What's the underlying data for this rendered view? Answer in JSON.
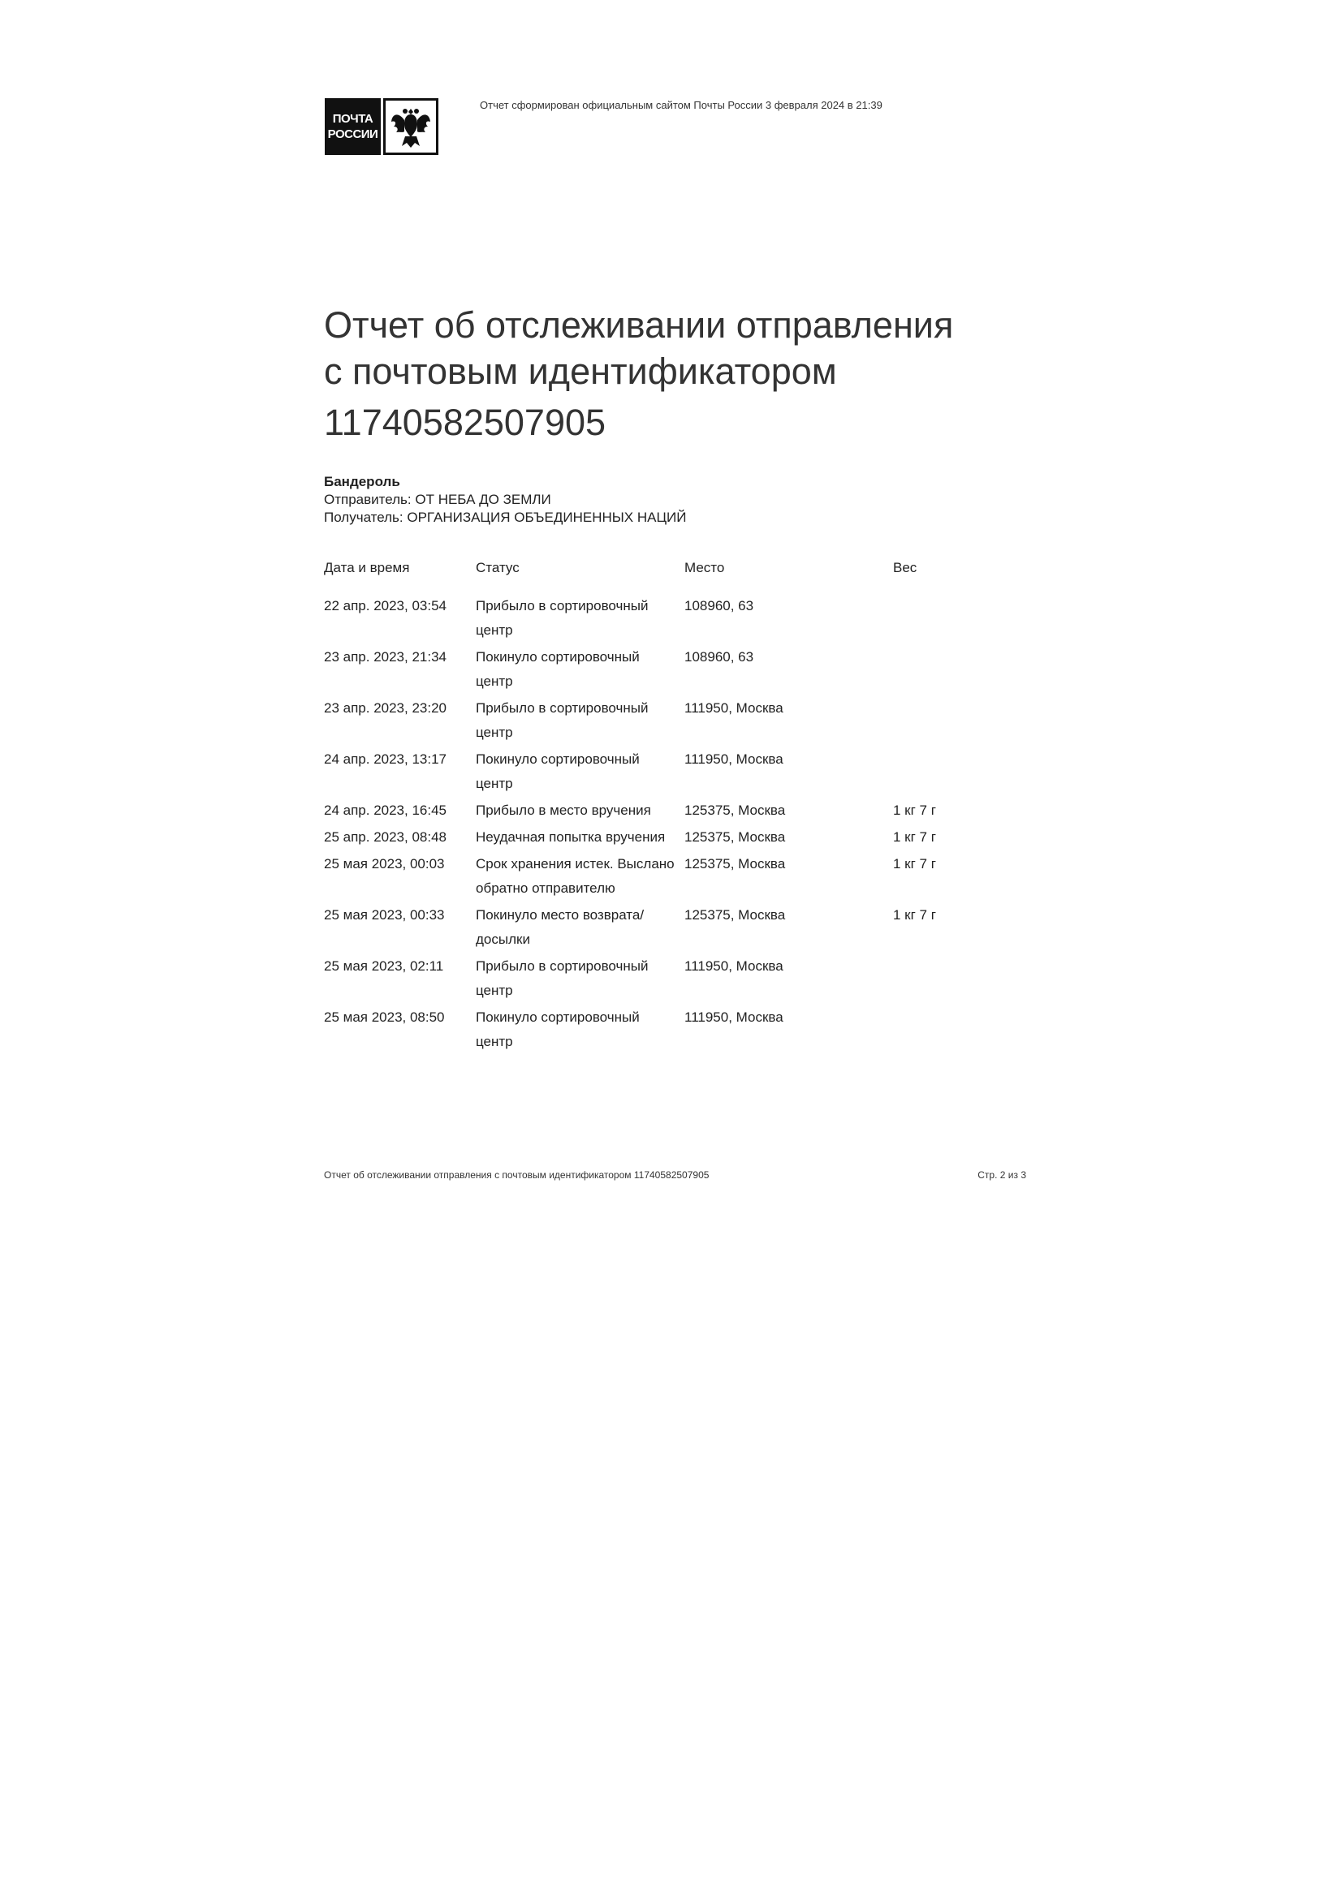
{
  "logo": {
    "line1": "ПОЧТА",
    "line2": "РОССИИ"
  },
  "generated_note": "Отчет сформирован официальным сайтом Почты России 3 февраля 2024 в 21:39",
  "title": {
    "line1": "Отчет об отслеживании отправления",
    "line2": "с почтовым идентификатором",
    "tracking_number": "11740582507905"
  },
  "shipment": {
    "type": "Бандероль",
    "sender": "Отправитель: ОТ НЕБА ДО ЗЕМЛИ",
    "recipient": "Получатель: ОРГАНИЗАЦИЯ ОБЪЕДИНЕННЫХ НАЦИЙ"
  },
  "table": {
    "headers": [
      "Дата и время",
      "Статус",
      "Место",
      "Вес"
    ],
    "rows": [
      {
        "date": "22 апр. 2023, 03:54",
        "status": "Прибыло в сортировочный центр",
        "place": "108960, 63",
        "weight": ""
      },
      {
        "date": "23 апр. 2023, 21:34",
        "status": "Покинуло сортировочный центр",
        "place": "108960, 63",
        "weight": ""
      },
      {
        "date": "23 апр. 2023, 23:20",
        "status": "Прибыло в сортировочный центр",
        "place": "111950, Москва",
        "weight": ""
      },
      {
        "date": "24 апр. 2023, 13:17",
        "status": "Покинуло сортировочный центр",
        "place": "111950, Москва",
        "weight": ""
      },
      {
        "date": "24 апр. 2023, 16:45",
        "status": "Прибыло в место вручения",
        "place": "125375, Москва",
        "weight": "1 кг 7 г"
      },
      {
        "date": "25 апр. 2023, 08:48",
        "status": "Неудачная попытка вручения",
        "place": "125375, Москва",
        "weight": "1 кг 7 г"
      },
      {
        "date": "25 мая 2023, 00:03",
        "status": "Срок хранения истек. Выслано обратно отправителю",
        "place": "125375, Москва",
        "weight": "1 кг 7 г"
      },
      {
        "date": "25 мая 2023, 00:33",
        "status": "Покинуло место возврата/ досылки",
        "place": "125375, Москва",
        "weight": "1 кг 7 г"
      },
      {
        "date": "25 мая 2023, 02:11",
        "status": "Прибыло в сортировочный центр",
        "place": "111950, Москва",
        "weight": ""
      },
      {
        "date": "25 мая 2023, 08:50",
        "status": "Покинуло сортировочный центр",
        "place": "111950, Москва",
        "weight": ""
      }
    ]
  },
  "footer": {
    "left": "Отчет об отслеживании отправления с почтовым идентификатором 11740582507905",
    "page": "Стр. 2 из 3"
  }
}
